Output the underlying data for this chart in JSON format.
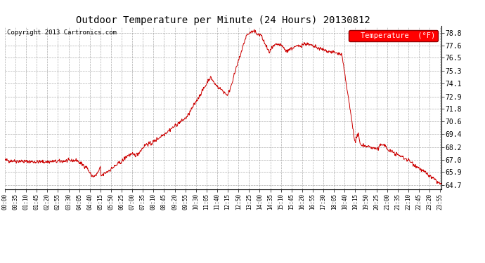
{
  "title": "Outdoor Temperature per Minute (24 Hours) 20130812",
  "copyright_text": "Copyright 2013 Cartronics.com",
  "legend_label": "Temperature  (°F)",
  "line_color": "#cc0000",
  "background_color": "#ffffff",
  "grid_color": "#aaaaaa",
  "ytick_labels": [
    64.7,
    65.9,
    67.0,
    68.2,
    69.4,
    70.6,
    71.8,
    72.9,
    74.1,
    75.3,
    76.5,
    77.6,
    78.8
  ],
  "ylim": [
    64.3,
    79.4
  ],
  "figsize": [
    6.9,
    3.75
  ],
  "dpi": 100
}
